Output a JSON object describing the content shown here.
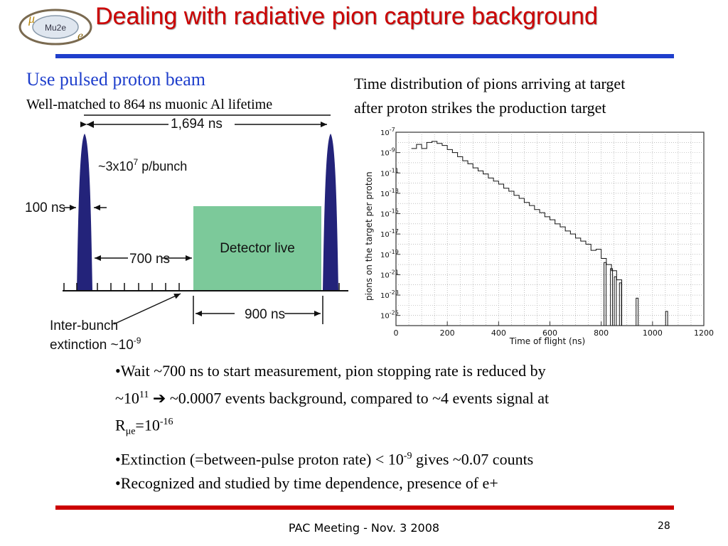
{
  "slide": {
    "title": "Dealing with radiative pion capture background",
    "logo_text": "Mu2e",
    "left_heading": "Use pulsed proton beam",
    "left_subheading": "Well-matched to 864 ns muonic Al lifetime",
    "right_caption_line1": "Time distribution of pions arriving at target",
    "right_caption_line2": "after proton strikes the production target",
    "footer": "PAC Meeting - Nov. 3 2008",
    "page_number": "28"
  },
  "beam_diagram": {
    "period_label": "1,694 ns",
    "bunch_label": "~3x10",
    "bunch_exp": "7",
    "bunch_unit": " p/bunch",
    "pulse_width_label": "100 ns",
    "delay_label": "700 ns",
    "detector_label": "Detector live",
    "window_label": "900 ns",
    "extinction_line1": "Inter-bunch",
    "extinction_line2": "extinction ~10",
    "extinction_exp": "-9",
    "colors": {
      "pulse": "#23237a",
      "detector": "#7cc99a"
    }
  },
  "bullets": {
    "b1_part1": "•Wait ~700 ns to start measurement, pion stopping rate is reduced by",
    "b1_part2": "~10",
    "b1_exp1": "11",
    "b1_arrow": "➔",
    "b1_part3": " ~0.0007 events background, compared to ~4 events signal at",
    "b1_part4": "R",
    "b1_sub": "μe",
    "b1_part5": "=10",
    "b1_exp2": "-16",
    "b2_part1": "•Extinction (=between-pulse proton rate) < 10",
    "b2_exp": "-9",
    "b2_part2": " gives ~0.07 counts",
    "b3": "•Recognized and studied by time dependence, presence of e+"
  },
  "chart_data": {
    "type": "line",
    "title": "",
    "xlabel": "Time of flight (ns)",
    "ylabel": "pions on the target per proton",
    "x_ticks": [
      0,
      200,
      400,
      600,
      800,
      1000,
      1200
    ],
    "y_tick_exponents": [
      -7,
      -9,
      -11,
      -13,
      -15,
      -17,
      -19,
      -21,
      -23,
      -25
    ],
    "xlim": [
      0,
      1200
    ],
    "ylim_log10": [
      -26,
      -7
    ],
    "grid": true,
    "series": [
      {
        "x": [
          70,
          90,
          110,
          130,
          150,
          170,
          190,
          210,
          230,
          250,
          270,
          290,
          310,
          330,
          350,
          370,
          390,
          410,
          430,
          450,
          470,
          490,
          510,
          530,
          550,
          570,
          590,
          610,
          630,
          650,
          670,
          690,
          710,
          730,
          750,
          770,
          790,
          810,
          830,
          850,
          870
        ],
        "log10_y": [
          -8.6,
          -8.2,
          -8.6,
          -8.0,
          -7.9,
          -8.1,
          -8.3,
          -8.7,
          -9.0,
          -9.4,
          -9.8,
          -10.1,
          -10.5,
          -10.8,
          -11.1,
          -11.5,
          -11.8,
          -12.1,
          -12.5,
          -12.8,
          -13.2,
          -13.5,
          -13.9,
          -14.2,
          -14.6,
          -14.9,
          -15.3,
          -15.6,
          -16.0,
          -16.3,
          -16.7,
          -17.0,
          -17.4,
          -17.7,
          -18.0,
          -18.6,
          -18.5,
          -19.4,
          -20.0,
          -20.6,
          -21.5
        ]
      }
    ],
    "spikes": [
      {
        "x": 815,
        "log10_y": -19.8
      },
      {
        "x": 840,
        "log10_y": -20.4
      },
      {
        "x": 855,
        "log10_y": -21.2
      },
      {
        "x": 875,
        "log10_y": -21.8
      },
      {
        "x": 940,
        "log10_y": -23.3
      },
      {
        "x": 1055,
        "log10_y": -24.6
      }
    ]
  }
}
